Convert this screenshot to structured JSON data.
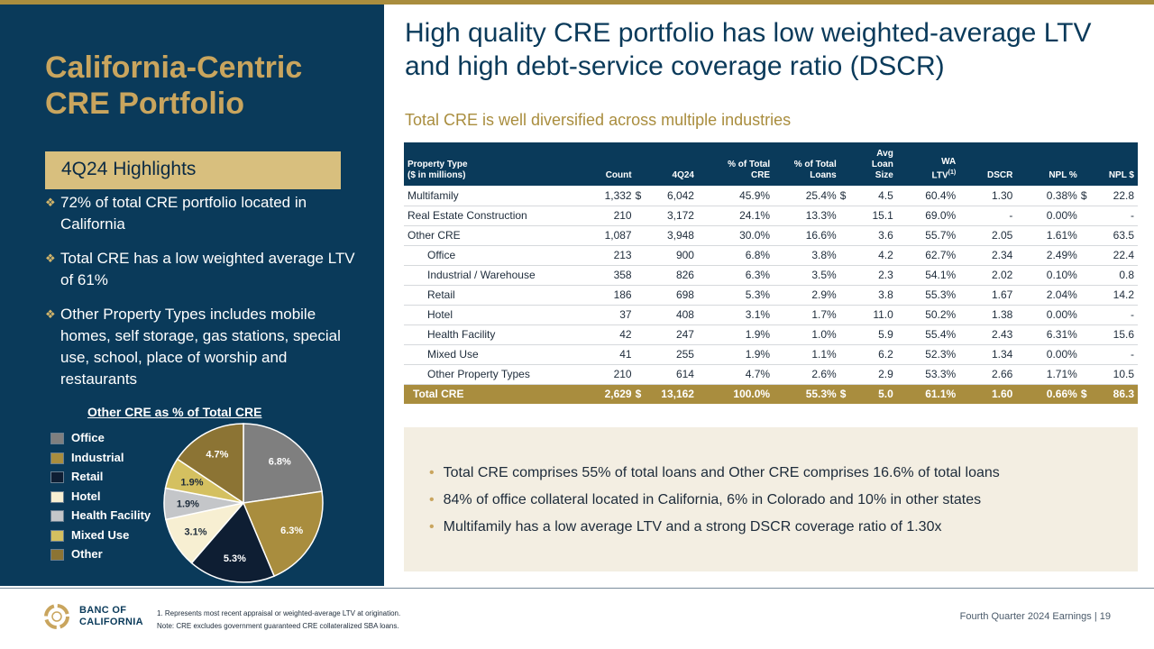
{
  "left": {
    "title_line1": "California-Centric",
    "title_line2": "CRE Portfolio",
    "highlights_label": "4Q24 Highlights",
    "bullets": [
      "72% of total CRE portfolio located in California",
      "Total CRE has a low weighted average LTV of 61%",
      "Other Property Types includes mobile homes, self storage, gas stations, special use, school, place of worship and restaurants"
    ]
  },
  "pie": {
    "title": "Other CRE as % of Total CRE",
    "legend": [
      {
        "label": "Office",
        "color": "#7f7f7f"
      },
      {
        "label": "Industrial",
        "color": "#a98d3e"
      },
      {
        "label": "Retail",
        "color": "#0e1e33"
      },
      {
        "label": "Hotel",
        "color": "#f7efd2"
      },
      {
        "label": "Health Facility",
        "color": "#c4c6c9"
      },
      {
        "label": "Mixed Use",
        "color": "#d4c060"
      },
      {
        "label": "Other",
        "color": "#8c7434"
      }
    ]
  },
  "chart_data": {
    "type": "pie",
    "title": "Other CRE as % of Total CRE",
    "categories": [
      "Office",
      "Industrial",
      "Retail",
      "Hotel",
      "Health Facility",
      "Mixed Use",
      "Other"
    ],
    "values": [
      6.8,
      6.3,
      5.3,
      3.1,
      1.9,
      1.9,
      4.7
    ],
    "labels": [
      "6.8%",
      "6.3%",
      "5.3%",
      "3.1%",
      "1.9%",
      "1.9%",
      "4.7%"
    ],
    "colors": [
      "#7f7f7f",
      "#a98d3e",
      "#0e1e33",
      "#f7efd2",
      "#c4c6c9",
      "#d4c060",
      "#8c7434"
    ],
    "label_colors": [
      "#ffffff",
      "#ffffff",
      "#ffffff",
      "#1d2b3a",
      "#1d2b3a",
      "#1d2b3a",
      "#ffffff"
    ]
  },
  "headline": {
    "line1": "High quality CRE portfolio has low weighted-average LTV",
    "line2": "and high debt-service coverage ratio (DSCR)"
  },
  "subhead": "Total CRE is well diversified across multiple industries",
  "table": {
    "headers": {
      "property_line1": "Property Type",
      "property_line2": "($ in millions)",
      "count": "Count",
      "q424": "4Q24",
      "pct_cre_line1": "% of Total",
      "pct_cre_line2": "CRE",
      "pct_loans_line1": "% of  Total",
      "pct_loans_line2": "Loans",
      "avg_line1": "Avg Loan",
      "avg_line2": "Size",
      "ltv_line1": "WA",
      "ltv_line2": "LTV",
      "ltv_sup": "(1)",
      "dscr": "DSCR",
      "npl_pct": "NPL %",
      "npl_dollar": "NPL $"
    },
    "rows": [
      {
        "name": "Multifamily",
        "indent": false,
        "count": "1,332",
        "cur1": "$",
        "q424": "6,042",
        "pct_cre": "45.9%",
        "pct_loans": "25.4%",
        "cur2": "$",
        "avg": "4.5",
        "ltv": "60.4%",
        "dscr": "1.30",
        "npl_pct": "0.38%",
        "cur3": "$",
        "npl": "22.8"
      },
      {
        "name": "Real Estate Construction",
        "indent": false,
        "count": "210",
        "cur1": "",
        "q424": "3,172",
        "pct_cre": "24.1%",
        "pct_loans": "13.3%",
        "cur2": "",
        "avg": "15.1",
        "ltv": "69.0%",
        "dscr": "-",
        "npl_pct": "0.00%",
        "cur3": "",
        "npl": "-"
      },
      {
        "name": "Other CRE",
        "indent": false,
        "count": "1,087",
        "cur1": "",
        "q424": "3,948",
        "pct_cre": "30.0%",
        "pct_loans": "16.6%",
        "cur2": "",
        "avg": "3.6",
        "ltv": "55.7%",
        "dscr": "2.05",
        "npl_pct": "1.61%",
        "cur3": "",
        "npl": "63.5"
      },
      {
        "name": "Office",
        "indent": true,
        "count": "213",
        "cur1": "",
        "q424": "900",
        "pct_cre": "6.8%",
        "pct_loans": "3.8%",
        "cur2": "",
        "avg": "4.2",
        "ltv": "62.7%",
        "dscr": "2.34",
        "npl_pct": "2.49%",
        "cur3": "",
        "npl": "22.4"
      },
      {
        "name": "Industrial / Warehouse",
        "indent": true,
        "count": "358",
        "cur1": "",
        "q424": "826",
        "pct_cre": "6.3%",
        "pct_loans": "3.5%",
        "cur2": "",
        "avg": "2.3",
        "ltv": "54.1%",
        "dscr": "2.02",
        "npl_pct": "0.10%",
        "cur3": "",
        "npl": "0.8"
      },
      {
        "name": "Retail",
        "indent": true,
        "count": "186",
        "cur1": "",
        "q424": "698",
        "pct_cre": "5.3%",
        "pct_loans": "2.9%",
        "cur2": "",
        "avg": "3.8",
        "ltv": "55.3%",
        "dscr": "1.67",
        "npl_pct": "2.04%",
        "cur3": "",
        "npl": "14.2"
      },
      {
        "name": "Hotel",
        "indent": true,
        "count": "37",
        "cur1": "",
        "q424": "408",
        "pct_cre": "3.1%",
        "pct_loans": "1.7%",
        "cur2": "",
        "avg": "11.0",
        "ltv": "50.2%",
        "dscr": "1.38",
        "npl_pct": "0.00%",
        "cur3": "",
        "npl": "-"
      },
      {
        "name": "Health Facility",
        "indent": true,
        "count": "42",
        "cur1": "",
        "q424": "247",
        "pct_cre": "1.9%",
        "pct_loans": "1.0%",
        "cur2": "",
        "avg": "5.9",
        "ltv": "55.4%",
        "dscr": "2.43",
        "npl_pct": "6.31%",
        "cur3": "",
        "npl": "15.6"
      },
      {
        "name": "Mixed Use",
        "indent": true,
        "count": "41",
        "cur1": "",
        "q424": "255",
        "pct_cre": "1.9%",
        "pct_loans": "1.1%",
        "cur2": "",
        "avg": "6.2",
        "ltv": "52.3%",
        "dscr": "1.34",
        "npl_pct": "0.00%",
        "cur3": "",
        "npl": "-"
      },
      {
        "name": "Other Property Types",
        "indent": true,
        "count": "210",
        "cur1": "",
        "q424": "614",
        "pct_cre": "4.7%",
        "pct_loans": "2.6%",
        "cur2": "",
        "avg": "2.9",
        "ltv": "53.3%",
        "dscr": "2.66",
        "npl_pct": "1.71%",
        "cur3": "",
        "npl": "10.5"
      }
    ],
    "total": {
      "name": "Total CRE",
      "count": "2,629",
      "cur1": "$",
      "q424": "13,162",
      "pct_cre": "100.0%",
      "pct_loans": "55.3%",
      "cur2": "$",
      "avg": "5.0",
      "ltv": "61.1%",
      "dscr": "1.60",
      "npl_pct": "0.66%",
      "cur3": "$",
      "npl": "86.3"
    }
  },
  "notes": [
    "Total CRE comprises 55% of total loans and Other CRE comprises 16.6% of total loans",
    "84% of office collateral located in California, 6% in Colorado and 10% in other states",
    "Multifamily has a low average LTV and a strong DSCR coverage ratio of 1.30x"
  ],
  "footer": {
    "logo_line1": "BANC OF",
    "logo_line2": "CALIFORNIA",
    "footnote1": "1.  Represents most recent appraisal or weighted-average LTV at origination.",
    "footnote2": "Note: CRE excludes government guaranteed CRE collateralized SBA loans.",
    "page_label": "Fourth Quarter 2024 Earnings |  19"
  }
}
